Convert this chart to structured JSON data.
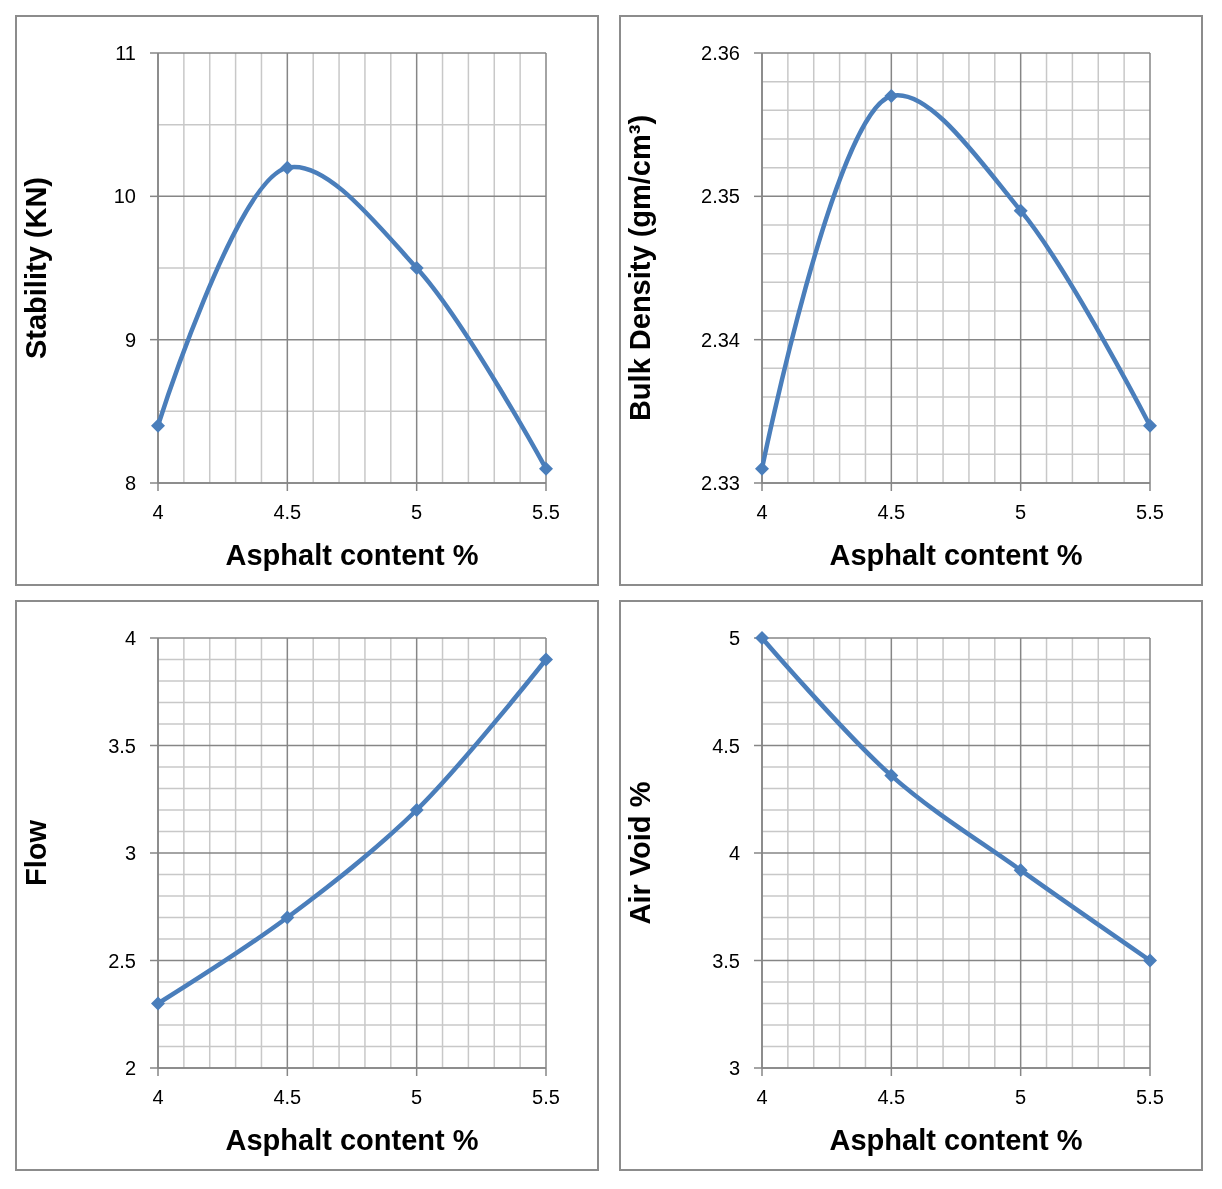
{
  "chart_data": [
    {
      "type": "line",
      "xlabel": "Asphalt content %",
      "ylabel": "Stability (KN)",
      "x": [
        4,
        4.5,
        5,
        5.5
      ],
      "series": [
        {
          "color": "#4a7ebb",
          "values": [
            8.4,
            10.2,
            9.5,
            8.1
          ]
        }
      ],
      "xlim": [
        4,
        5.5
      ],
      "xticks": [
        4,
        4.5,
        5,
        5.5
      ],
      "ylim": [
        8,
        11
      ],
      "yticks": [
        8,
        9,
        10,
        11
      ],
      "grid": true,
      "marker": "diamond"
    },
    {
      "type": "line",
      "xlabel": "Asphalt content %",
      "ylabel": "Bulk Density (gm/cm³)",
      "x": [
        4,
        4.5,
        5,
        5.5
      ],
      "series": [
        {
          "color": "#4a7ebb",
          "values": [
            2.331,
            2.357,
            2.349,
            2.334
          ]
        }
      ],
      "xlim": [
        4,
        5.5
      ],
      "xticks": [
        4,
        4.5,
        5,
        5.5
      ],
      "ylim": [
        2.33,
        2.36
      ],
      "yticks": [
        2.33,
        2.34,
        2.35,
        2.36
      ],
      "grid": true,
      "marker": "diamond"
    },
    {
      "type": "line",
      "xlabel": "Asphalt content %",
      "ylabel": "Flow",
      "x": [
        4,
        4.5,
        5,
        5.5
      ],
      "series": [
        {
          "color": "#4a7ebb",
          "values": [
            2.3,
            2.7,
            3.2,
            3.9
          ]
        }
      ],
      "xlim": [
        4,
        5.5
      ],
      "xticks": [
        4,
        4.5,
        5,
        5.5
      ],
      "ylim": [
        2,
        4
      ],
      "yticks": [
        2,
        2.5,
        3,
        3.5,
        4
      ],
      "grid": true,
      "marker": "diamond"
    },
    {
      "type": "line",
      "xlabel": "Asphalt content %",
      "ylabel": "Air Void %",
      "x": [
        4,
        4.5,
        5,
        5.5
      ],
      "series": [
        {
          "color": "#4a7ebb",
          "values": [
            5,
            4.36,
            3.92,
            3.5
          ]
        }
      ],
      "xlim": [
        4,
        5.5
      ],
      "xticks": [
        4,
        4.5,
        5,
        5.5
      ],
      "ylim": [
        3,
        5
      ],
      "yticks": [
        3,
        3.5,
        4,
        4.5,
        5
      ],
      "grid": true,
      "marker": "diamond"
    }
  ]
}
